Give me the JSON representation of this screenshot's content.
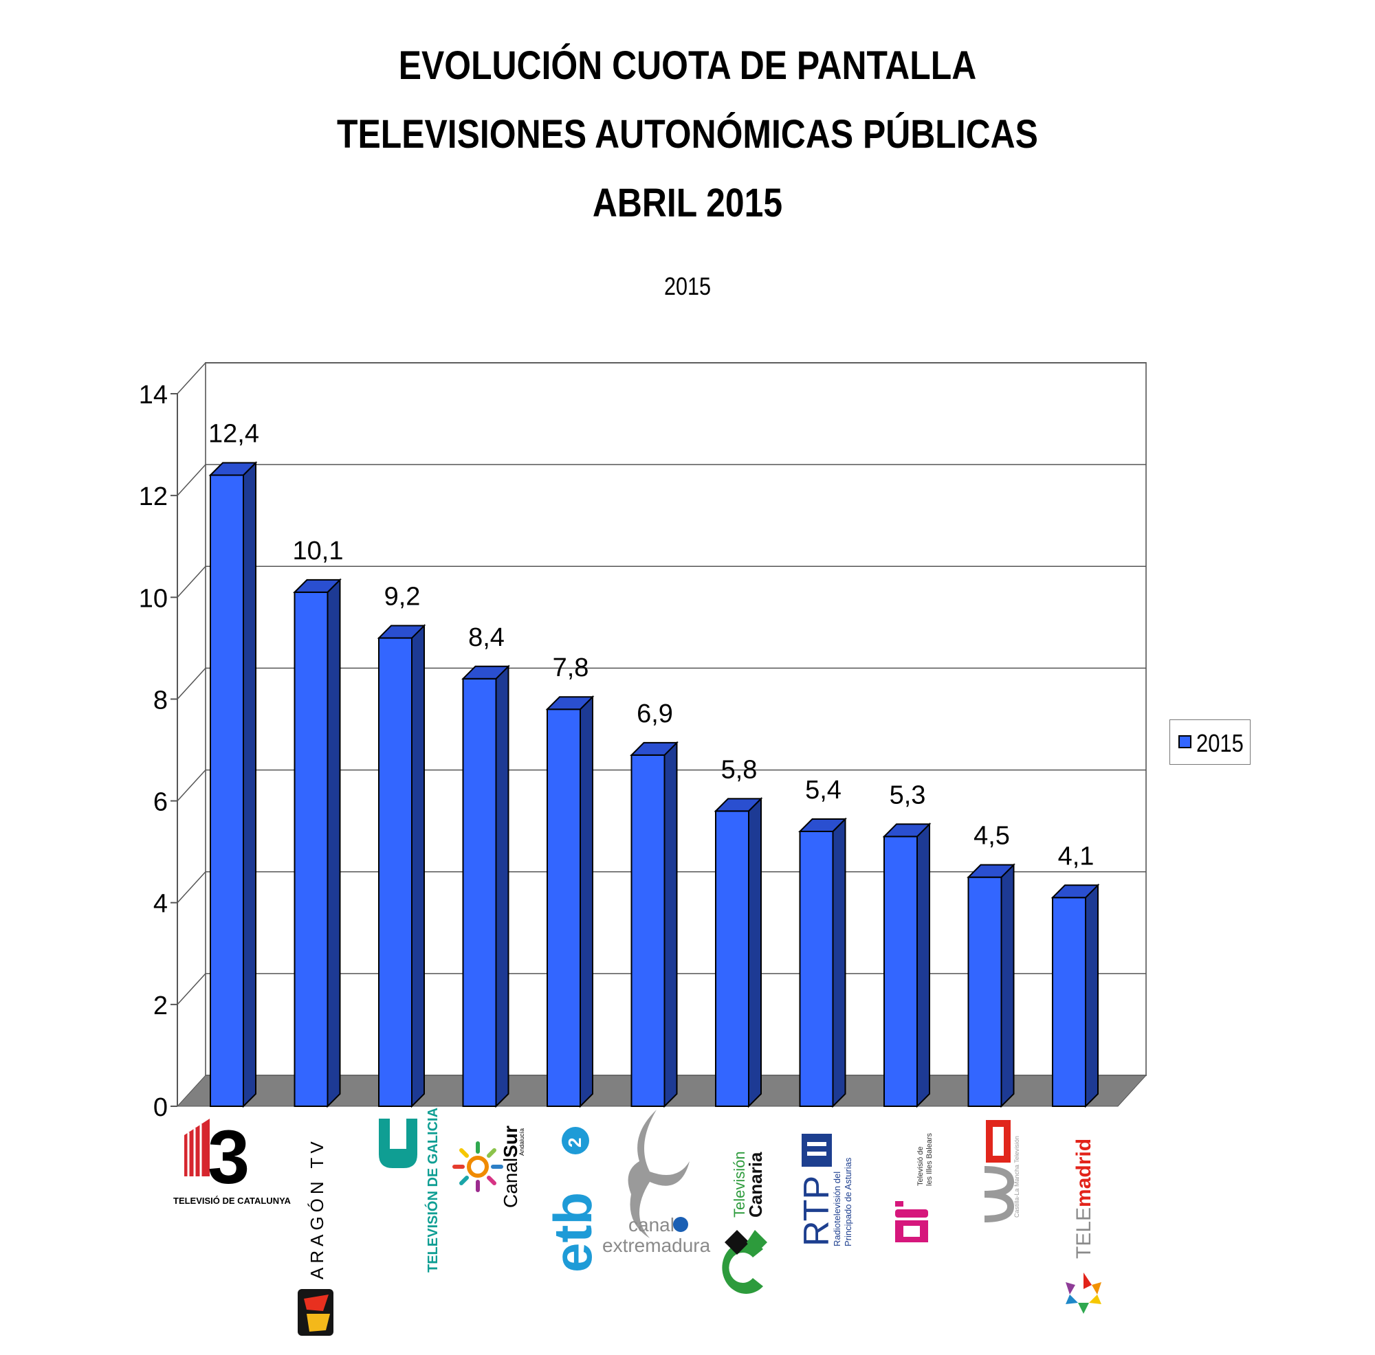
{
  "title_lines": [
    "EVOLUCIÓN CUOTA DE PANTALLA",
    "TELEVISIONES AUTONÓMICAS PÚBLICAS",
    "ABRIL 2015"
  ],
  "subtitle": "2015",
  "legend": {
    "label": "2015",
    "color": "#3366ff"
  },
  "colors": {
    "bar_front": "#3366ff",
    "bar_side": "#1d3a94",
    "bar_top": "#2a4fd0",
    "floor": "#808080"
  },
  "chart_data": {
    "type": "bar",
    "title": "EVOLUCIÓN CUOTA DE PANTALLA TELEVISIONES AUTONÓMICAS PÚBLICAS ABRIL 2015",
    "subtitle": "2015",
    "ylim": [
      0,
      14
    ],
    "yticks": [
      "0",
      "2",
      "4",
      "6",
      "8",
      "10",
      "12",
      "14"
    ],
    "grid": true,
    "legend_position": "right",
    "categories": [
      "TV3",
      "Aragón TV",
      "Televisión de Galicia",
      "Canal Sur",
      "ETB2",
      "Canal Extremadura",
      "Televisión Canaria",
      "RTPA",
      "IB3",
      "CMT",
      "Telemadrid"
    ],
    "series": [
      {
        "name": "2015",
        "values": [
          12.4,
          10.1,
          9.2,
          8.4,
          7.8,
          6.9,
          5.8,
          5.4,
          5.3,
          4.5,
          4.1
        ],
        "labels": [
          "12,4",
          "10,1",
          "9,2",
          "8,4",
          "7,8",
          "6,9",
          "5,8",
          "5,4",
          "5,3",
          "4,5",
          "4,1"
        ]
      }
    ]
  },
  "logos": {
    "tv3": "TELEVISIÓ DE CATALUNYA",
    "aragon": "ARAGÓN TV",
    "galicia": "TELEVISIÓN DE GALICIA",
    "canalsur_a": "Canal",
    "canalsur_b": "Sur",
    "canalsur_c": "Andalucía",
    "etb": "etb",
    "extremadura_a": "canal",
    "extremadura_b": "extremadura",
    "canaria_a": "Televisión",
    "canaria_b": "Canaria",
    "rtpa_a": "RTP",
    "rtpa_b": "Radiotelevisión del",
    "rtpa_c": "Principado de Asturias",
    "ib3_a": "Televisió de",
    "ib3_b": "les Illes Balears",
    "telemadrid_a": "TELE",
    "telemadrid_b": "madrid"
  }
}
